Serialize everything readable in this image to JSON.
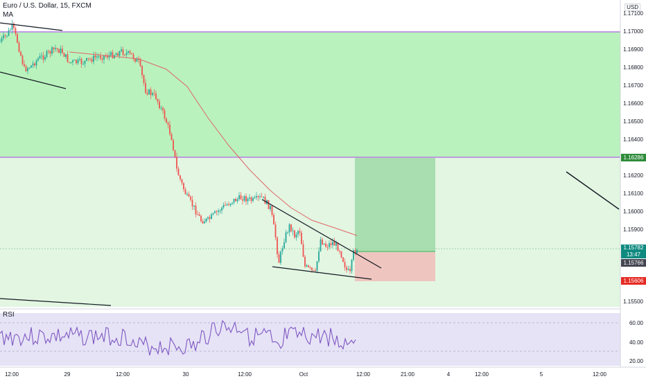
{
  "header": {
    "symbol_title": "Euro / U.S. Dollar, 15, FXCM",
    "indicator_ma": "MA",
    "indicator_rsi": "RSI"
  },
  "axis": {
    "currency": "USD",
    "price_labels": [
      "1.17100",
      "1.17000",
      "1.16900",
      "1.16800",
      "1.16700",
      "1.16600",
      "1.16500",
      "1.16400",
      "1.16200",
      "1.16100",
      "1.16000",
      "1.15900",
      "1.15800",
      "1.15500"
    ],
    "rsi_labels": [
      "60.00",
      "40.00",
      "20.00"
    ],
    "time_labels": [
      "12:00",
      "29",
      "12:00",
      "30",
      "12:00",
      "Oct",
      "12:00",
      "21:00",
      "4",
      "12:00",
      "5",
      "12:00"
    ]
  },
  "tags": {
    "resistance": "1.16286",
    "current_price": "1.15782",
    "countdown": "13:47",
    "prev_close": "1.15766",
    "stop": "1.15606"
  },
  "colors": {
    "zone_green": "#b9f2bd",
    "zone_light": "#e2f6e2",
    "candle_up": "#26a69a",
    "candle_down": "#ef5350",
    "ma_line": "#e06666",
    "rsi_line": "#7e57c2",
    "target_box": "#9ed9a7",
    "stop_box": "#efc3bd",
    "tag_green": "#2e8b3a",
    "tag_dark": "#434651",
    "tag_red": "#e52b24",
    "tag_teal": "#0f8a80",
    "level_line": "#b57de0"
  }
}
